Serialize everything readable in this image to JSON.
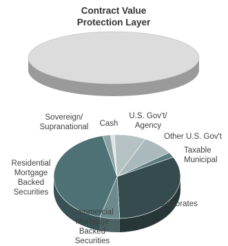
{
  "chart_data": [
    {
      "type": "pie",
      "title": "Contract Value Protection Layer",
      "title_lines": [
        "Contract Value",
        "Protection Layer"
      ],
      "categories": [
        "Contract Value Protection Layer"
      ],
      "values": [
        100
      ]
    },
    {
      "type": "pie",
      "title": "",
      "categories": [
        "Cash",
        "U.S. Gov't/ Agency",
        "Other U.S. Gov't",
        "Taxable Municipal",
        "Corporates",
        "Commercial Mortgage Backed Securities",
        "Residential Mortgage Backed Securities",
        "Sovereign/ Supranational"
      ],
      "values": [
        1,
        8,
        8,
        2,
        32,
        5,
        42,
        2
      ],
      "label_lines": [
        [
          "Cash"
        ],
        [
          "U.S. Gov't/",
          "Agency"
        ],
        [
          "Other U.S. Gov't"
        ],
        [
          "Taxable",
          "Municipal"
        ],
        [
          "Corporates"
        ],
        [
          "Commercial",
          "Mortgage",
          "Backed",
          "Securities"
        ],
        [
          "Residential",
          "Mortgage",
          "Backed",
          "Securities"
        ],
        [
          "Sovereign/",
          "Supranational"
        ]
      ],
      "colors": [
        "#dde2e3",
        "#b5c2c4",
        "#a9b9bc",
        "#5d7d80",
        "#364b4d",
        "#6a8a8d",
        "#4d7174",
        "#8ea3a6"
      ]
    }
  ],
  "colors": {
    "top_pie_fill": "#dcdcdc",
    "top_pie_side": "#9a9a9a"
  }
}
